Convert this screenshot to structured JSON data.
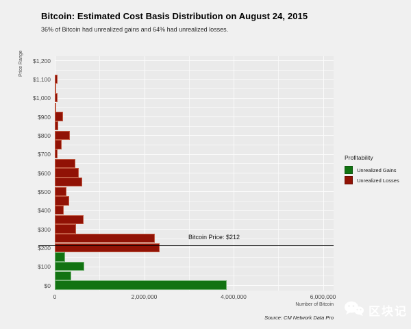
{
  "header": {
    "title": "Bitcoin: Estimated Cost Basis Distribution on August 24, 2015",
    "subtitle": "36% of Bitcoin had unrealized gains and 64% had unrealized losses."
  },
  "chart_data": {
    "type": "bar",
    "orientation": "horizontal",
    "title": "Bitcoin: Estimated Cost Basis Distribution on August 24, 2015",
    "subtitle": "36% of Bitcoin had unrealized gains and 64% had unrealized losses.",
    "xlabel": "Number of Bitcoin",
    "ylabel": "Price Range",
    "xlim": [
      0,
      6000000
    ],
    "ylim_price": [
      0,
      1200
    ],
    "grid": true,
    "legend_position": "right",
    "x_ticks": [
      {
        "value": 0,
        "label": "0"
      },
      {
        "value": 2000000,
        "label": "2,000,000"
      },
      {
        "value": 4000000,
        "label": "4,000,000"
      },
      {
        "value": 6000000,
        "label": "6,000,000"
      }
    ],
    "y_ticks": [
      {
        "value": 0,
        "label": "$0"
      },
      {
        "value": 100,
        "label": "$100"
      },
      {
        "value": 200,
        "label": "$200"
      },
      {
        "value": 300,
        "label": "$300"
      },
      {
        "value": 400,
        "label": "$400"
      },
      {
        "value": 500,
        "label": "$500"
      },
      {
        "value": 600,
        "label": "$600"
      },
      {
        "value": 700,
        "label": "$700"
      },
      {
        "value": 800,
        "label": "$800"
      },
      {
        "value": 900,
        "label": "$900"
      },
      {
        "value": 1000,
        "label": "$1,000"
      },
      {
        "value": 1100,
        "label": "$1,100"
      },
      {
        "value": 1200,
        "label": "$1,200"
      }
    ],
    "bin_width_usd": 50,
    "bins": [
      {
        "price": 0,
        "btc": 3850000,
        "category": "Unrealized Gains"
      },
      {
        "price": 50,
        "btc": 370000,
        "category": "Unrealized Gains"
      },
      {
        "price": 100,
        "btc": 660000,
        "category": "Unrealized Gains"
      },
      {
        "price": 150,
        "btc": 230000,
        "category": "Unrealized Gains"
      },
      {
        "price": 200,
        "btc": 2350000,
        "category": "Unrealized Losses"
      },
      {
        "price": 250,
        "btc": 2230000,
        "category": "Unrealized Losses"
      },
      {
        "price": 300,
        "btc": 470000,
        "category": "Unrealized Losses"
      },
      {
        "price": 350,
        "btc": 650000,
        "category": "Unrealized Losses"
      },
      {
        "price": 400,
        "btc": 200000,
        "category": "Unrealized Losses"
      },
      {
        "price": 450,
        "btc": 320000,
        "category": "Unrealized Losses"
      },
      {
        "price": 500,
        "btc": 260000,
        "category": "Unrealized Losses"
      },
      {
        "price": 550,
        "btc": 610000,
        "category": "Unrealized Losses"
      },
      {
        "price": 600,
        "btc": 540000,
        "category": "Unrealized Losses"
      },
      {
        "price": 650,
        "btc": 460000,
        "category": "Unrealized Losses"
      },
      {
        "price": 700,
        "btc": 60000,
        "category": "Unrealized Losses"
      },
      {
        "price": 750,
        "btc": 150000,
        "category": "Unrealized Losses"
      },
      {
        "price": 800,
        "btc": 340000,
        "category": "Unrealized Losses"
      },
      {
        "price": 850,
        "btc": 70000,
        "category": "Unrealized Losses"
      },
      {
        "price": 900,
        "btc": 180000,
        "category": "Unrealized Losses"
      },
      {
        "price": 950,
        "btc": 30000,
        "category": "Unrealized Losses"
      },
      {
        "price": 1000,
        "btc": 60000,
        "category": "Unrealized Losses"
      },
      {
        "price": 1050,
        "btc": 30000,
        "category": "Unrealized Losses"
      },
      {
        "price": 1100,
        "btc": 60000,
        "category": "Unrealized Losses"
      }
    ],
    "price_line": {
      "value": 212,
      "label": "Bitcoin Price: $212"
    },
    "legend": {
      "title": "Profitability",
      "items": [
        {
          "label": "Unrealized Gains",
          "color": "#127312"
        },
        {
          "label": "Unrealized Losses",
          "color": "#911205"
        }
      ]
    },
    "colors": {
      "gain": "#127312",
      "loss": "#911205"
    }
  },
  "footer": {
    "source": "Source: CM Network Data Pro"
  },
  "watermark": {
    "icon": "wechat-icon",
    "text": "区块记"
  }
}
